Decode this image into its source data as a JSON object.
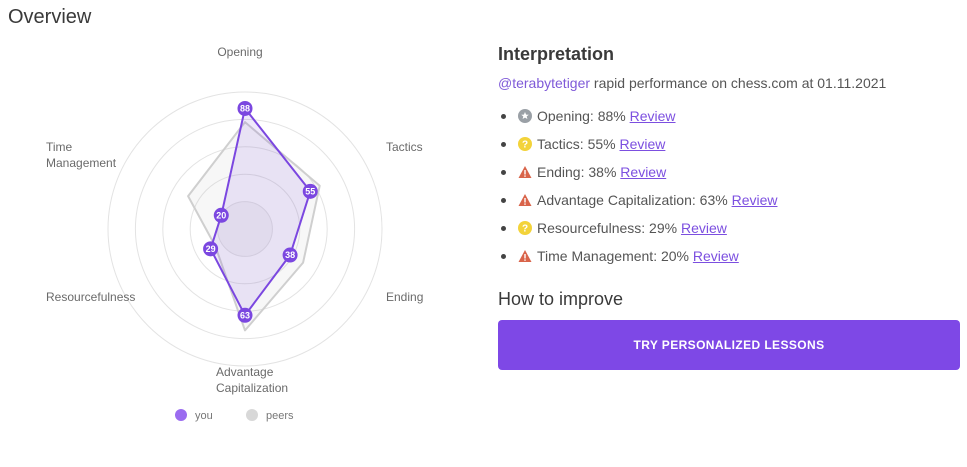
{
  "overview": {
    "title": "Overview"
  },
  "chart_data": {
    "type": "radar",
    "axes": [
      "Opening",
      "Tactics",
      "Ending",
      "Advantage Capitalization",
      "Resourcefulness",
      "Time Management"
    ],
    "axis_labels": [
      {
        "key": "opening",
        "lines": [
          "Opening"
        ]
      },
      {
        "key": "tactics",
        "lines": [
          "Tactics"
        ]
      },
      {
        "key": "ending",
        "lines": [
          "Ending"
        ]
      },
      {
        "key": "advantage",
        "lines": [
          "Advantage",
          "Capitalization"
        ]
      },
      {
        "key": "resourcefulness",
        "lines": [
          "Resourcefulness"
        ]
      },
      {
        "key": "time",
        "lines": [
          "Time",
          "Management"
        ]
      }
    ],
    "range": [
      0,
      100
    ],
    "rings": 5,
    "series": [
      {
        "name": "you",
        "values": [
          88,
          55,
          38,
          63,
          29,
          20
        ],
        "color": "#7b47e0"
      },
      {
        "name": "peers",
        "values": [
          78,
          63,
          49,
          74,
          25,
          48
        ],
        "color": "#d6d6d6"
      }
    ],
    "legend": [
      "you",
      "peers"
    ]
  },
  "interpretation": {
    "title": "Interpretation",
    "username": "@terabytetiger",
    "subtitle_rest": " rapid performance on chess.com at 01.11.2021",
    "items": [
      {
        "icon": "star-badge-icon",
        "label": "Opening: 88%",
        "link": "Review"
      },
      {
        "icon": "question-badge-icon",
        "label": "Tactics: 55%",
        "link": "Review"
      },
      {
        "icon": "warning-icon",
        "label": "Ending: 38%",
        "link": "Review"
      },
      {
        "icon": "warning-icon",
        "label": "Advantage Capitalization: 63%",
        "link": "Review"
      },
      {
        "icon": "question-badge-icon",
        "label": "Resourcefulness: 29%",
        "link": "Review"
      },
      {
        "icon": "warning-icon",
        "label": "Time Management: 20%",
        "link": "Review"
      }
    ]
  },
  "improve": {
    "title": "How to improve",
    "button": "TRY PERSONALIZED LESSONS"
  }
}
